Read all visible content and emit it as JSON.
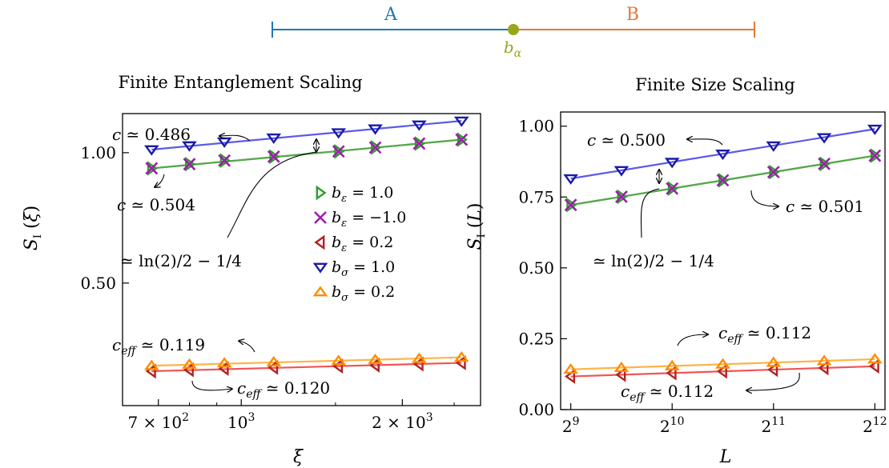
{
  "diagram": {
    "region_a_label": "A",
    "region_b_label": "B",
    "boundary_label": "bα",
    "colors": {
      "A": "#1f77b4",
      "B": "#e07b39",
      "boundary": "#9aa61a"
    }
  },
  "chart_data": [
    {
      "type": "scatter",
      "title": "Finite Entanglement Scaling",
      "xlabel": "ξ",
      "ylabel": "S_I (ξ)",
      "xscale": "log",
      "xlim": [
        600,
        2800
      ],
      "ylim": [
        0.03,
        1.15
      ],
      "xticks": [
        {
          "value": 700,
          "label": "7 × 10²"
        },
        {
          "value": 1000,
          "label": "10³"
        },
        {
          "value": 2000,
          "label": "2 × 10³"
        }
      ],
      "yticks": [
        {
          "value": 0.5,
          "label": "0.50"
        },
        {
          "value": 1.0,
          "label": "1.00"
        }
      ],
      "grid": false,
      "legend_position": "center-right",
      "series": [
        {
          "name": "bε = 1.0",
          "marker": "triangle-right",
          "color": "#2ca02c",
          "line_color": "#55a84a",
          "x": [
            680,
            800,
            930,
            1150,
            1520,
            1780,
            2150,
            2580
          ],
          "y": [
            0.94,
            0.956,
            0.97,
            0.985,
            1.005,
            1.02,
            1.035,
            1.05
          ]
        },
        {
          "name": "bε = −1.0",
          "marker": "x",
          "color": "#9b1fa8",
          "line_color": "#55a84a",
          "x": [
            680,
            800,
            930,
            1150,
            1520,
            1780,
            2150,
            2580
          ],
          "y": [
            0.94,
            0.956,
            0.97,
            0.985,
            1.005,
            1.02,
            1.035,
            1.05
          ]
        },
        {
          "name": "bε = 0.2",
          "marker": "triangle-left",
          "color": "#b22222",
          "line_color": "#f05555",
          "x": [
            680,
            800,
            930,
            1150,
            1520,
            1780,
            2150,
            2580
          ],
          "y": [
            0.162,
            0.167,
            0.172,
            0.176,
            0.181,
            0.185,
            0.189,
            0.194
          ]
        },
        {
          "name": "bσ = 1.0",
          "marker": "triangle-down",
          "color": "#1a1aa8",
          "line_color": "#5a5ae8",
          "x": [
            680,
            800,
            930,
            1150,
            1520,
            1780,
            2150,
            2580
          ],
          "y": [
            1.012,
            1.027,
            1.042,
            1.057,
            1.077,
            1.092,
            1.107,
            1.122
          ]
        },
        {
          "name": "bσ = 0.2",
          "marker": "triangle-up",
          "color": "#ff8c00",
          "line_color": "#ffb347",
          "x": [
            680,
            800,
            930,
            1150,
            1520,
            1780,
            2150,
            2580
          ],
          "y": [
            0.183,
            0.188,
            0.193,
            0.197,
            0.202,
            0.206,
            0.21,
            0.215
          ]
        }
      ],
      "annotations": [
        "c ≃ 0.486",
        "c ≃ 0.504",
        "≃ ln(2)/2 − 1/4",
        "c_eff ≃ 0.119",
        "c_eff ≃ 0.120"
      ]
    },
    {
      "type": "scatter",
      "title": "Finite Size Scaling",
      "xlabel": "L",
      "ylabel": "S_I (L)",
      "xscale": "log2",
      "xlim": [
        8.9,
        12.1
      ],
      "ylim": [
        0,
        1.05
      ],
      "xticks": [
        {
          "value": 9,
          "base": "2",
          "exp": "9"
        },
        {
          "value": 10,
          "base": "2",
          "exp": "10"
        },
        {
          "value": 11,
          "base": "2",
          "exp": "11"
        },
        {
          "value": 12,
          "base": "2",
          "exp": "12"
        }
      ],
      "yticks": [
        {
          "value": 0.0,
          "label": "0.00"
        },
        {
          "value": 0.25,
          "label": "0.25"
        },
        {
          "value": 0.5,
          "label": "0.50"
        },
        {
          "value": 0.75,
          "label": "0.75"
        },
        {
          "value": 1.0,
          "label": "1.00"
        }
      ],
      "grid": false,
      "series": [
        {
          "name": "bε = 1.0",
          "marker": "triangle-right",
          "color": "#2ca02c",
          "line_color": "#55a84a",
          "x": [
            9,
            9.5,
            10,
            10.5,
            11,
            11.5,
            12
          ],
          "y": [
            0.722,
            0.751,
            0.78,
            0.809,
            0.838,
            0.867,
            0.896
          ]
        },
        {
          "name": "bε = −1.0",
          "marker": "x",
          "color": "#9b1fa8",
          "line_color": "#55a84a",
          "x": [
            9,
            9.5,
            10,
            10.5,
            11,
            11.5,
            12
          ],
          "y": [
            0.722,
            0.751,
            0.78,
            0.809,
            0.838,
            0.867,
            0.896
          ]
        },
        {
          "name": "bε = 0.2",
          "marker": "triangle-left",
          "color": "#b22222",
          "line_color": "#f05555",
          "x": [
            9,
            9.5,
            10,
            10.5,
            11,
            11.5,
            12
          ],
          "y": [
            0.117,
            0.123,
            0.129,
            0.135,
            0.141,
            0.147,
            0.153
          ]
        },
        {
          "name": "bσ = 1.0",
          "marker": "triangle-down",
          "color": "#1a1aa8",
          "line_color": "#5a5ae8",
          "x": [
            9,
            9.5,
            10,
            10.5,
            11,
            11.5,
            12
          ],
          "y": [
            0.815,
            0.844,
            0.873,
            0.902,
            0.931,
            0.96,
            0.99
          ]
        },
        {
          "name": "bσ = 0.2",
          "marker": "triangle-up",
          "color": "#ff8c00",
          "line_color": "#ffb347",
          "x": [
            9,
            9.5,
            10,
            10.5,
            11,
            11.5,
            12
          ],
          "y": [
            0.142,
            0.148,
            0.154,
            0.16,
            0.166,
            0.172,
            0.178
          ]
        }
      ],
      "annotations": [
        "c ≃ 0.500",
        "c ≃ 0.501",
        "≃ ln(2)/2 − 1/4",
        "c_eff ≃ 0.112",
        "c_eff ≃ 0.112"
      ]
    }
  ]
}
